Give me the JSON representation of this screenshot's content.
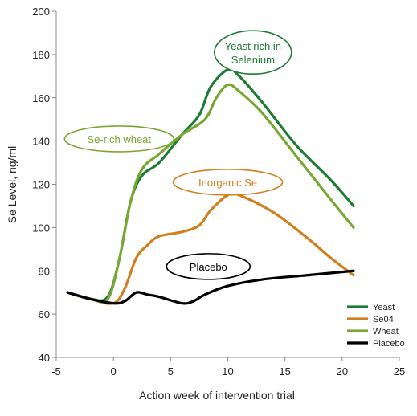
{
  "chart_data": {
    "type": "line",
    "xlabel": "Action week of intervention trial",
    "ylabel": "Se Level, ng/ml",
    "xlim": [
      -5,
      25
    ],
    "ylim": [
      40,
      200
    ],
    "x_ticks": [
      -5,
      0,
      5,
      10,
      15,
      20,
      25
    ],
    "y_ticks": [
      40,
      60,
      80,
      100,
      120,
      140,
      160,
      180,
      200
    ],
    "grid": false,
    "legend_position": "bottom-right",
    "series": [
      {
        "name": "Yeast",
        "color": "#1e7b34",
        "x": [
          -4,
          -2,
          -0.5,
          0.5,
          1.5,
          2.5,
          4,
          6,
          7.5,
          8.5,
          10,
          11,
          13,
          16,
          19,
          21
        ],
        "values": [
          70,
          67,
          68,
          85,
          112,
          124,
          130,
          143,
          152,
          165,
          173,
          170,
          158,
          138,
          122,
          110
        ]
      },
      {
        "name": "Se04",
        "color": "#d17f1f",
        "x": [
          -4,
          -2,
          0,
          1,
          2,
          3,
          4,
          6,
          7.5,
          8.5,
          10,
          11,
          14,
          17,
          19,
          21
        ],
        "values": [
          70,
          67,
          65,
          72,
          86,
          92,
          96,
          98,
          101,
          108,
          115,
          115,
          107,
          95,
          86,
          78
        ]
      },
      {
        "name": "Wheat",
        "color": "#79a832",
        "x": [
          -4,
          -2,
          -0.5,
          0.5,
          1.5,
          2.5,
          4,
          6,
          8,
          9,
          10,
          11,
          13,
          16,
          19,
          21
        ],
        "values": [
          70,
          67,
          67,
          85,
          112,
          127,
          134,
          143,
          150,
          160,
          166,
          163,
          153,
          133,
          113,
          100
        ]
      },
      {
        "name": "Placebo",
        "color": "#000000",
        "x": [
          -4,
          -2,
          0,
          1,
          2,
          3,
          4,
          6,
          7,
          8,
          10,
          13,
          17,
          21
        ],
        "values": [
          70,
          67,
          65,
          66,
          70,
          69,
          68,
          65,
          66,
          69,
          73,
          76,
          78,
          80
        ]
      }
    ],
    "annotations": [
      {
        "text": "Yeast rich in",
        "text2": "Selenium",
        "color": "#1e7b34",
        "x": 12.2,
        "y": 181
      },
      {
        "text": "Se-rich wheat",
        "text2": "",
        "color": "#79a832",
        "x": 0.5,
        "y": 141
      },
      {
        "text": "Inorganic Se",
        "text2": "",
        "color": "#d17f1f",
        "x": 10,
        "y": 121
      },
      {
        "text": "Placebo",
        "text2": "",
        "color": "#000000",
        "x": 8.3,
        "y": 82
      }
    ]
  }
}
